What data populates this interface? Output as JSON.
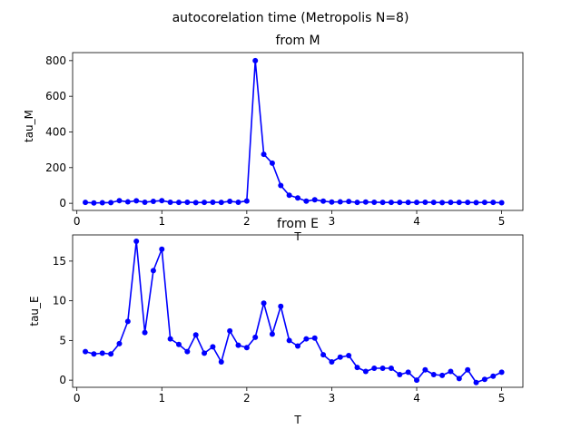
{
  "figure": {
    "suptitle": "autocorelation time (Metropolis N=8)"
  },
  "chart_data": [
    {
      "type": "line",
      "title": "from M",
      "xlabel": "T",
      "ylabel": "tau_M",
      "xlim": [
        -0.05,
        5.25
      ],
      "ylim": [
        -40,
        845
      ],
      "xticks": [
        0,
        1,
        2,
        3,
        4,
        5
      ],
      "yticks": [
        0,
        200,
        400,
        600,
        800
      ],
      "color": "#0000ff",
      "grid": false,
      "series": [
        {
          "x": [
            0.1,
            0.2,
            0.3,
            0.4,
            0.5,
            0.6,
            0.7,
            0.8,
            0.9,
            1.0,
            1.1,
            1.2,
            1.3,
            1.4,
            1.5,
            1.6,
            1.7,
            1.8,
            1.9,
            2.0,
            2.1,
            2.2,
            2.3,
            2.4,
            2.5,
            2.6,
            2.7,
            2.8,
            2.9,
            3.0,
            3.1,
            3.2,
            3.3,
            3.4,
            3.5,
            3.6,
            3.7,
            3.8,
            3.9,
            4.0,
            4.1,
            4.2,
            4.3,
            4.4,
            4.5,
            4.6,
            4.7,
            4.8,
            4.9,
            5.0
          ],
          "y": [
            5,
            2,
            3,
            4,
            15,
            8,
            14,
            6,
            11,
            15,
            6,
            5,
            6,
            4,
            5,
            6,
            5,
            11,
            6,
            13,
            800,
            275,
            225,
            100,
            45,
            30,
            12,
            20,
            12,
            7,
            8,
            10,
            5,
            7,
            6,
            5,
            5,
            5,
            5,
            5,
            6,
            5,
            4,
            5,
            5,
            5,
            4,
            5,
            5,
            3
          ]
        }
      ]
    },
    {
      "type": "line",
      "title": "from E",
      "xlabel": "T",
      "ylabel": "tau_E",
      "xlim": [
        -0.05,
        5.25
      ],
      "ylim": [
        -0.9,
        18.3
      ],
      "xticks": [
        0,
        1,
        2,
        3,
        4,
        5
      ],
      "yticks": [
        0,
        5,
        10,
        15
      ],
      "color": "#0000ff",
      "grid": false,
      "series": [
        {
          "x": [
            0.1,
            0.2,
            0.3,
            0.4,
            0.5,
            0.6,
            0.7,
            0.8,
            0.9,
            1.0,
            1.1,
            1.2,
            1.3,
            1.4,
            1.5,
            1.6,
            1.7,
            1.8,
            1.9,
            2.0,
            2.1,
            2.2,
            2.3,
            2.4,
            2.5,
            2.6,
            2.7,
            2.8,
            2.9,
            3.0,
            3.1,
            3.2,
            3.3,
            3.4,
            3.5,
            3.6,
            3.7,
            3.8,
            3.9,
            4.0,
            4.1,
            4.2,
            4.3,
            4.4,
            4.5,
            4.6,
            4.7,
            4.8,
            4.9,
            5.0
          ],
          "y": [
            3.6,
            3.3,
            3.4,
            3.3,
            4.6,
            7.4,
            17.5,
            6.0,
            13.8,
            16.5,
            5.2,
            4.5,
            3.6,
            5.7,
            3.4,
            4.2,
            2.3,
            6.2,
            4.4,
            4.1,
            5.4,
            9.7,
            5.8,
            9.3,
            5.0,
            4.3,
            5.2,
            5.3,
            3.2,
            2.3,
            2.9,
            3.1,
            1.6,
            1.1,
            1.5,
            1.5,
            1.5,
            0.7,
            1.0,
            0.0,
            1.3,
            0.7,
            0.6,
            1.1,
            0.2,
            1.3,
            -0.3,
            0.1,
            0.5,
            1.0
          ]
        }
      ]
    }
  ]
}
